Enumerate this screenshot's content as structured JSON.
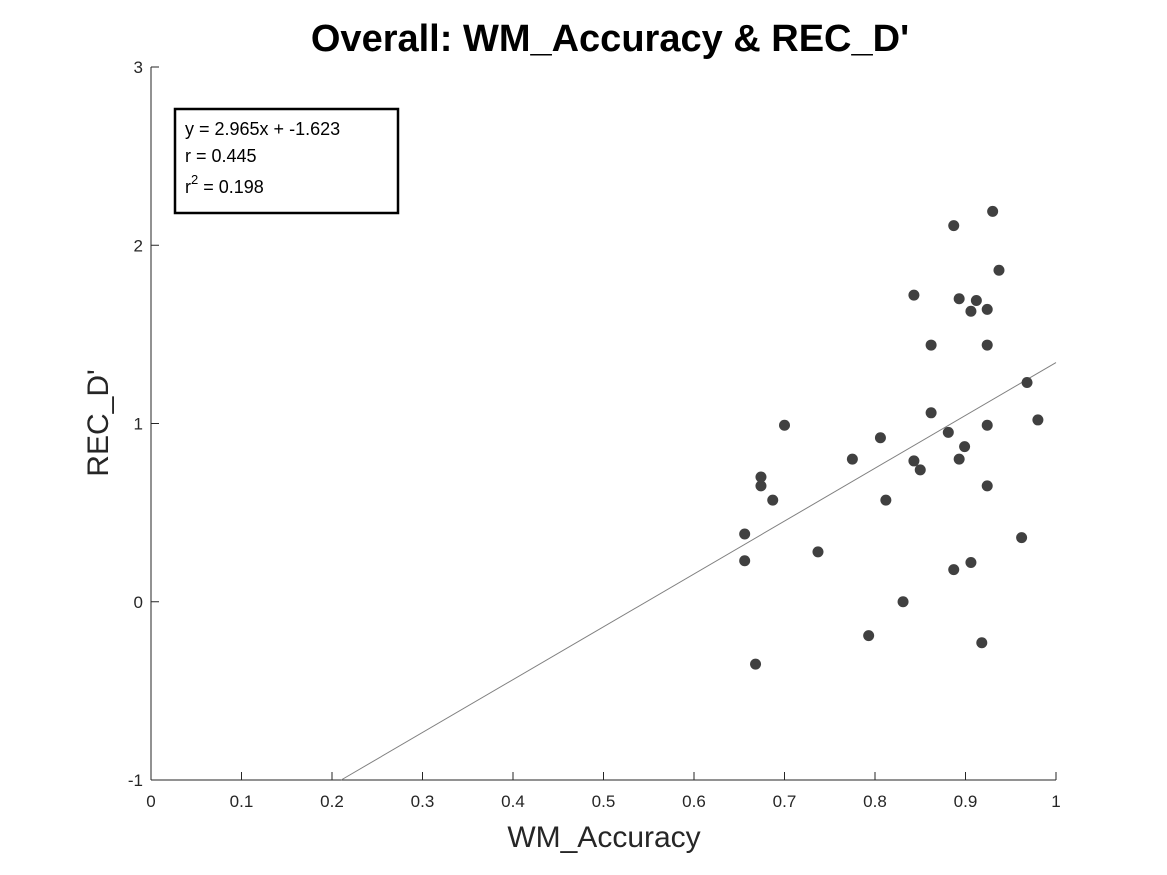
{
  "chart_data": {
    "type": "scatter",
    "title": "Overall: WM_Accuracy & REC_D'",
    "xlabel": "WM_Accuracy",
    "ylabel": "REC_D'",
    "xlim": [
      0,
      1
    ],
    "ylim": [
      -1,
      3
    ],
    "xticks": [
      0,
      0.1,
      0.2,
      0.3,
      0.4,
      0.5,
      0.6,
      0.7,
      0.8,
      0.9,
      1
    ],
    "xtick_labels": [
      "0",
      "0.1",
      "0.2",
      "0.3",
      "0.4",
      "0.5",
      "0.6",
      "0.7",
      "0.8",
      "0.9",
      "1"
    ],
    "yticks": [
      -1,
      0,
      1,
      2,
      3
    ],
    "ytick_labels": [
      "-1",
      "0",
      "1",
      "2",
      "3"
    ],
    "grid": false,
    "marker_color": "#404040",
    "fit_line_color": "#808080",
    "points": [
      {
        "x": 0.656,
        "y": 0.38
      },
      {
        "x": 0.656,
        "y": 0.23
      },
      {
        "x": 0.668,
        "y": -0.35
      },
      {
        "x": 0.674,
        "y": 0.7
      },
      {
        "x": 0.674,
        "y": 0.65
      },
      {
        "x": 0.687,
        "y": 0.57
      },
      {
        "x": 0.7,
        "y": 0.99
      },
      {
        "x": 0.737,
        "y": 0.28
      },
      {
        "x": 0.775,
        "y": 0.8
      },
      {
        "x": 0.793,
        "y": -0.19
      },
      {
        "x": 0.806,
        "y": 0.92
      },
      {
        "x": 0.812,
        "y": 0.57
      },
      {
        "x": 0.831,
        "y": 0.0
      },
      {
        "x": 0.843,
        "y": 1.72
      },
      {
        "x": 0.843,
        "y": 0.79
      },
      {
        "x": 0.85,
        "y": 0.74
      },
      {
        "x": 0.862,
        "y": 1.44
      },
      {
        "x": 0.862,
        "y": 1.06
      },
      {
        "x": 0.881,
        "y": 0.95
      },
      {
        "x": 0.887,
        "y": 2.11
      },
      {
        "x": 0.887,
        "y": 0.18
      },
      {
        "x": 0.893,
        "y": 1.7
      },
      {
        "x": 0.893,
        "y": 0.8
      },
      {
        "x": 0.899,
        "y": 0.87
      },
      {
        "x": 0.906,
        "y": 1.63
      },
      {
        "x": 0.906,
        "y": 0.22
      },
      {
        "x": 0.912,
        "y": 1.69
      },
      {
        "x": 0.918,
        "y": -0.23
      },
      {
        "x": 0.924,
        "y": 1.64
      },
      {
        "x": 0.924,
        "y": 1.44
      },
      {
        "x": 0.924,
        "y": 0.99
      },
      {
        "x": 0.924,
        "y": 0.65
      },
      {
        "x": 0.93,
        "y": 2.19
      },
      {
        "x": 0.937,
        "y": 1.86
      },
      {
        "x": 0.962,
        "y": 0.36
      },
      {
        "x": 0.968,
        "y": 1.23
      },
      {
        "x": 0.98,
        "y": 1.02
      }
    ],
    "fit": {
      "slope": 2.965,
      "intercept": -1.623
    },
    "annotation": {
      "equation": "y = 2.965x + -1.623",
      "r": "r = 0.445",
      "r2_prefix": "r",
      "r2_exponent": "2",
      "r2_value": " = 0.198"
    }
  }
}
